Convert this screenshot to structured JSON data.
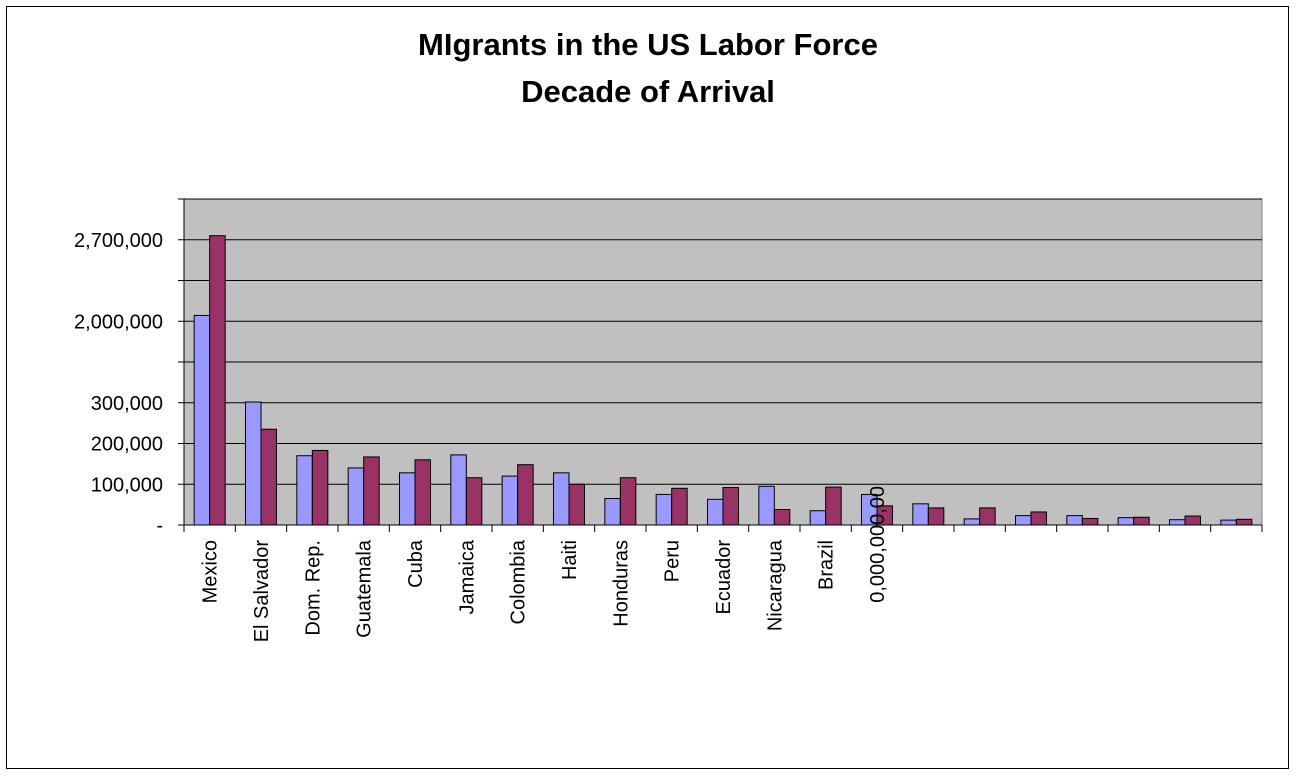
{
  "chart_data": {
    "type": "bar",
    "title_lines": [
      "MIgrants in the US Labor Force",
      "Decade of Arrival"
    ],
    "y_tick_labels": [
      "-",
      "100,000",
      "200,000",
      "300,000",
      "2,000,000",
      "2,700,000"
    ],
    "categories": [
      "Mexico",
      "El Salvador",
      "Dom. Rep.",
      "Guatemala",
      "Cuba",
      "Jamaica",
      "Colombia",
      "Haiti",
      "Honduras",
      "Peru",
      "Ecuador",
      "Nicaragua",
      "Brazil",
      "",
      "",
      "",
      "",
      "",
      "",
      "",
      ""
    ],
    "overlapping_label": "0,000,000,00",
    "series": [
      {
        "values": [
          2050000,
          315000,
          170000,
          140000,
          128000,
          172000,
          120000,
          128000,
          65000,
          75000,
          63000,
          95000,
          35000,
          75000,
          52000,
          15000,
          23000,
          23000,
          18000,
          13000,
          12000
        ]
      },
      {
        "values": [
          2730000,
          235000,
          183000,
          167000,
          160000,
          116000,
          148000,
          100000,
          116000,
          90000,
          92000,
          38000,
          93000,
          47000,
          42000,
          42000,
          32000,
          16000,
          19000,
          22000,
          14000
        ]
      }
    ],
    "colors": {
      "series_1": "#9999ff",
      "series_2": "#993366",
      "plot_background": "#c0c0c0",
      "gridline": "#000000"
    },
    "grid": true
  }
}
